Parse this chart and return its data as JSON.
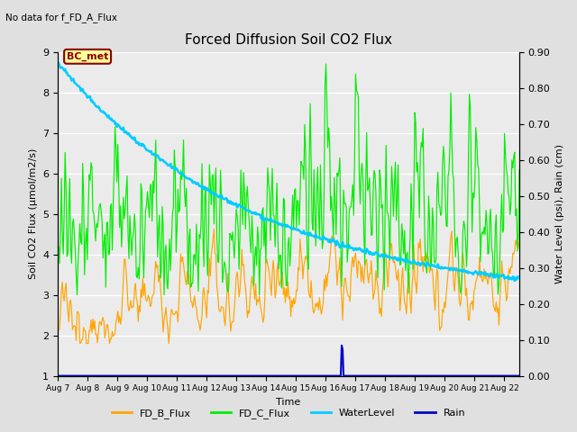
{
  "title": "Forced Diffusion Soil CO2 Flux",
  "no_data_text": "No data for f_FD_A_Flux",
  "bc_met_label": "BC_met",
  "xlabel": "Time",
  "ylabel_left": "Soil CO2 Flux (µmol/m2/s)",
  "ylabel_right": "Water Level (psi), Rain (cm)",
  "ylim_left": [
    1.0,
    9.0
  ],
  "ylim_right": [
    0.0,
    0.9
  ],
  "date_labels": [
    "Aug 7",
    "Aug 8",
    "Aug 9",
    "Aug 10",
    "Aug 11",
    "Aug 12",
    "Aug 13",
    "Aug 14",
    "Aug 15",
    "Aug 16",
    "Aug 17",
    "Aug 18",
    "Aug 19",
    "Aug 20",
    "Aug 21",
    "Aug 22"
  ],
  "date_ticks": [
    0,
    1,
    2,
    3,
    4,
    5,
    6,
    7,
    8,
    9,
    10,
    11,
    12,
    13,
    14,
    15
  ],
  "bg_color": "#e0e0e0",
  "plot_bg_color": "#ebebeb",
  "fd_b_color": "#FFA500",
  "fd_c_color": "#00EE00",
  "water_color": "#00CCFF",
  "rain_color": "#0000CC",
  "xlim": [
    0,
    15.5
  ],
  "left_yticks": [
    1.0,
    2.0,
    3.0,
    4.0,
    5.0,
    6.0,
    7.0,
    8.0,
    9.0
  ],
  "right_yticks": [
    0.0,
    0.1,
    0.2,
    0.3,
    0.4,
    0.5,
    0.6,
    0.7,
    0.8,
    0.9
  ]
}
